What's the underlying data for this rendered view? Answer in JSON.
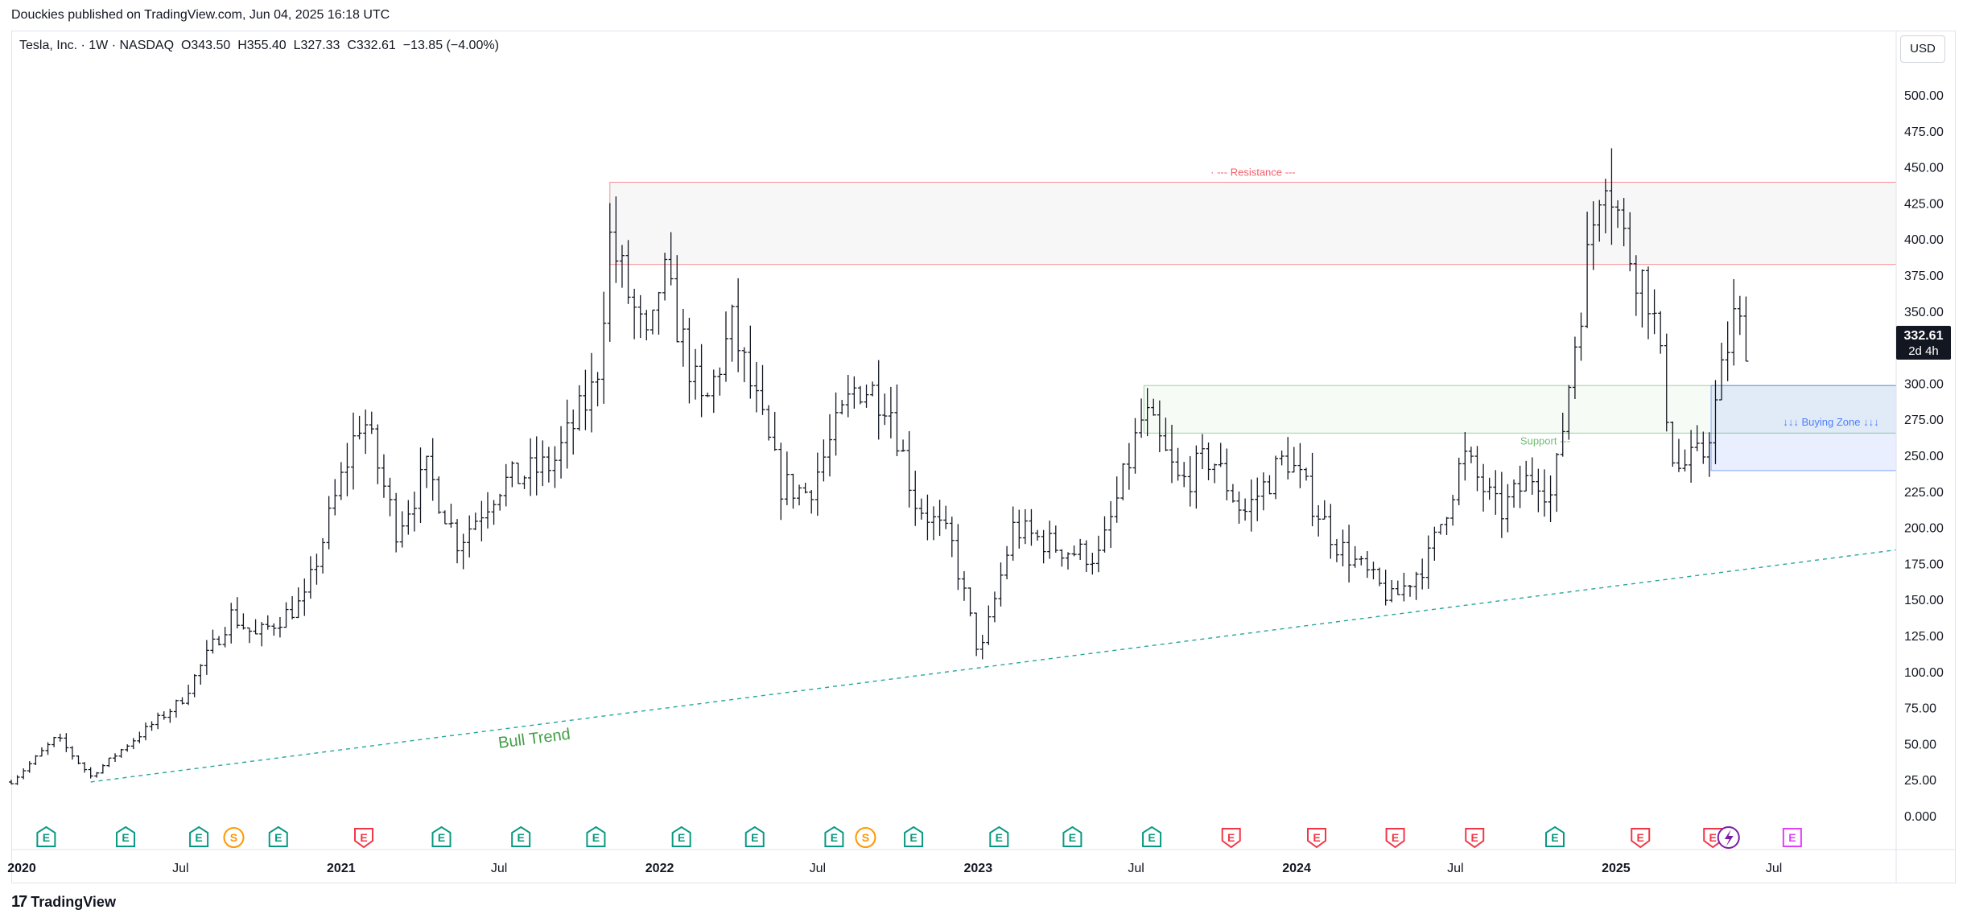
{
  "header": {
    "published": "Douckies published on TradingView.com, Jun 04, 2025 16:18 UTC"
  },
  "legend": {
    "symbol": "Tesla, Inc. · 1W · NASDAQ",
    "ohlc": "O343.50  H355.40  L327.33  C332.61  −13.85 (−4.00%)"
  },
  "currency": "USD",
  "price_label": {
    "price": "332.61",
    "countdown": "2d 4h"
  },
  "brand": {
    "mark": "17",
    "name": "TradingView"
  },
  "colors": {
    "resistance": "#f23645",
    "support": "#4caf50",
    "buying_zone": "#2962ff",
    "trend": "#26a69a",
    "bull_trend_text": "#43a047",
    "earnings_green": "#089981",
    "earnings_red": "#f23645",
    "dividend": "#ff9800",
    "upcoming": "#e040fb"
  },
  "chart_data": {
    "type": "ohlc",
    "title": "Tesla, Inc. · 1W · NASDAQ",
    "ylim": [
      -10,
      520
    ],
    "y_ticks": [
      "500.00",
      "475.00",
      "450.00",
      "425.00",
      "400.00",
      "375.00",
      "350.00",
      "325.00",
      "300.00",
      "275.00",
      "250.00",
      "225.00",
      "200.00",
      "175.00",
      "150.00",
      "125.00",
      "100.00",
      "75.00",
      "50.00",
      "25.00",
      "0.000"
    ],
    "x_ticks": [
      {
        "label": "2020",
        "date": "2020-01-01",
        "bold": true
      },
      {
        "label": "Jul",
        "date": "2020-07-01",
        "bold": false
      },
      {
        "label": "2021",
        "date": "2021-01-01",
        "bold": true
      },
      {
        "label": "Jul",
        "date": "2021-07-01",
        "bold": false
      },
      {
        "label": "2022",
        "date": "2022-01-01",
        "bold": true
      },
      {
        "label": "Jul",
        "date": "2022-07-01",
        "bold": false
      },
      {
        "label": "2023",
        "date": "2023-01-01",
        "bold": true
      },
      {
        "label": "Jul",
        "date": "2023-07-01",
        "bold": false
      },
      {
        "label": "2024",
        "date": "2024-01-01",
        "bold": true
      },
      {
        "label": "Jul",
        "date": "2024-07-01",
        "bold": false
      },
      {
        "label": "2025",
        "date": "2025-01-01",
        "bold": true
      },
      {
        "label": "Jul",
        "date": "2025-07-01",
        "bold": false
      }
    ],
    "x_range": [
      "2019-12-20",
      "2025-12-01"
    ],
    "price_path": [
      [
        "2019-12-20",
        24
      ],
      [
        "2020-02-10",
        55
      ],
      [
        "2020-03-20",
        28
      ],
      [
        "2020-05-01",
        50
      ],
      [
        "2020-07-01",
        80
      ],
      [
        "2020-08-28",
        140
      ],
      [
        "2020-09-25",
        125
      ],
      [
        "2020-11-20",
        150
      ],
      [
        "2020-12-25",
        220
      ],
      [
        "2021-01-25",
        280
      ],
      [
        "2021-03-05",
        200
      ],
      [
        "2021-04-10",
        240
      ],
      [
        "2021-05-15",
        190
      ],
      [
        "2021-07-01",
        230
      ],
      [
        "2021-09-01",
        245
      ],
      [
        "2021-10-20",
        300
      ],
      [
        "2021-11-05",
        400
      ],
      [
        "2021-12-20",
        320
      ],
      [
        "2022-01-03",
        380
      ],
      [
        "2022-02-20",
        280
      ],
      [
        "2022-03-25",
        340
      ],
      [
        "2022-05-20",
        230
      ],
      [
        "2022-06-20",
        225
      ],
      [
        "2022-08-15",
        300
      ],
      [
        "2022-09-20",
        290
      ],
      [
        "2022-10-20",
        220
      ],
      [
        "2022-12-01",
        190
      ],
      [
        "2023-01-03",
        110
      ],
      [
        "2023-02-10",
        200
      ],
      [
        "2023-04-10",
        185
      ],
      [
        "2023-05-20",
        180
      ],
      [
        "2023-07-10",
        280
      ],
      [
        "2023-08-20",
        230
      ],
      [
        "2023-09-25",
        250
      ],
      [
        "2023-11-01",
        210
      ],
      [
        "2023-12-20",
        250
      ],
      [
        "2024-02-15",
        190
      ],
      [
        "2024-04-20",
        150
      ],
      [
        "2024-06-01",
        180
      ],
      [
        "2024-07-10",
        250
      ],
      [
        "2024-08-20",
        210
      ],
      [
        "2024-10-01",
        240
      ],
      [
        "2024-10-20",
        220
      ],
      [
        "2024-11-15",
        330
      ],
      [
        "2024-12-18",
        460
      ],
      [
        "2025-01-10",
        400
      ],
      [
        "2025-02-10",
        360
      ],
      [
        "2025-03-10",
        240
      ],
      [
        "2025-04-10",
        250
      ],
      [
        "2025-04-25",
        285
      ],
      [
        "2025-05-15",
        345
      ],
      [
        "2025-05-30",
        332
      ]
    ],
    "zones": [
      {
        "name": "resistance",
        "label": "· --- Resistance ---",
        "from": "2021-11-05",
        "to": "2025-12-01",
        "low": 383,
        "high": 440
      },
      {
        "name": "support",
        "label": "Support ---",
        "from": "2023-07-10",
        "to": "2025-12-01",
        "low": 266,
        "high": 299
      },
      {
        "name": "buying-zone",
        "label": "↓↓↓ Buying Zone ↓↓↓",
        "from": "2025-04-20",
        "to": "2025-12-01",
        "low": 240,
        "high": 299
      }
    ],
    "trendline": {
      "label": "Bull Trend",
      "from": [
        "2020-03-20",
        24
      ],
      "to": [
        "2025-12-01",
        185
      ]
    },
    "events": [
      {
        "date": "2020-01-29",
        "type": "E",
        "color": "green"
      },
      {
        "date": "2020-04-29",
        "type": "E",
        "color": "green"
      },
      {
        "date": "2020-07-22",
        "type": "E",
        "color": "green"
      },
      {
        "date": "2020-08-31",
        "type": "S",
        "color": "orange"
      },
      {
        "date": "2020-10-21",
        "type": "E",
        "color": "green"
      },
      {
        "date": "2021-01-27",
        "type": "E",
        "color": "red"
      },
      {
        "date": "2021-04-26",
        "type": "E",
        "color": "green"
      },
      {
        "date": "2021-07-26",
        "type": "E",
        "color": "green"
      },
      {
        "date": "2021-10-20",
        "type": "E",
        "color": "green"
      },
      {
        "date": "2022-01-26",
        "type": "E",
        "color": "green"
      },
      {
        "date": "2022-04-20",
        "type": "E",
        "color": "green"
      },
      {
        "date": "2022-07-20",
        "type": "E",
        "color": "green"
      },
      {
        "date": "2022-08-25",
        "type": "S",
        "color": "orange"
      },
      {
        "date": "2022-10-19",
        "type": "E",
        "color": "green"
      },
      {
        "date": "2023-01-25",
        "type": "E",
        "color": "green"
      },
      {
        "date": "2023-04-19",
        "type": "E",
        "color": "green"
      },
      {
        "date": "2023-07-19",
        "type": "E",
        "color": "green"
      },
      {
        "date": "2023-10-18",
        "type": "E",
        "color": "red"
      },
      {
        "date": "2024-01-24",
        "type": "E",
        "color": "red"
      },
      {
        "date": "2024-04-23",
        "type": "E",
        "color": "red"
      },
      {
        "date": "2024-07-23",
        "type": "E",
        "color": "red"
      },
      {
        "date": "2024-10-23",
        "type": "E",
        "color": "green"
      },
      {
        "date": "2025-01-29",
        "type": "E",
        "color": "red"
      },
      {
        "date": "2025-04-22",
        "type": "E",
        "color": "red"
      },
      {
        "date": "2025-07-22",
        "type": "E",
        "color": "upcoming"
      }
    ]
  }
}
